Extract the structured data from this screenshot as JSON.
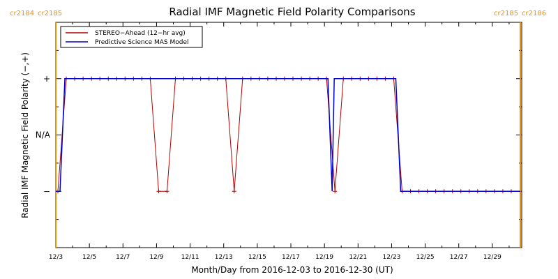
{
  "chart_data": {
    "type": "line",
    "title": "Radial IMF Magnetic Field Polarity Comparisons",
    "xlabel": "Month/Day from 2016-12-03 to 2016-12-30 (UT)",
    "ylabel": "Radial IMF Magnetic Field Polarity (−,+)",
    "x_tick_labels": [
      "12/3",
      "12/5",
      "12/7",
      "12/9",
      "12/11",
      "12/13",
      "12/15",
      "12/17",
      "12/19",
      "12/21",
      "12/23",
      "12/25",
      "12/27",
      "12/29"
    ],
    "x_tick_dates": [
      "2016-12-03",
      "2016-12-05",
      "2016-12-07",
      "2016-12-09",
      "2016-12-11",
      "2016-12-13",
      "2016-12-15",
      "2016-12-17",
      "2016-12-19",
      "2016-12-21",
      "2016-12-23",
      "2016-12-25",
      "2016-12-27",
      "2016-12-29"
    ],
    "x_range": [
      "2016-12-03",
      "2016-12-30T18:00"
    ],
    "y_categories": [
      "−",
      "N/A",
      "+"
    ],
    "y_category_values": [
      -1,
      0,
      1
    ],
    "ylim": [
      -2,
      2
    ],
    "carrington_markers": [
      {
        "date": "2016-12-03",
        "label_left": "cr2184",
        "label_right": "cr2185"
      },
      {
        "date": "2016-12-30T16:00",
        "label_left": "cr2185",
        "label_right": "cr2186"
      }
    ],
    "marker_color": "#e8900c",
    "series": [
      {
        "name": "STEREO−Ahead (12−hr avg)",
        "color": "#b00000",
        "step_hours": 12,
        "start": "2016-12-03",
        "values": [
          -1,
          1,
          1,
          1,
          1,
          1,
          1,
          1,
          1,
          1,
          1,
          1,
          -1,
          -1,
          1,
          1,
          1,
          1,
          1,
          1,
          1,
          -1,
          1,
          1,
          1,
          1,
          1,
          1,
          1,
          1,
          1,
          1,
          1,
          -1,
          1,
          1,
          1,
          1,
          1,
          1,
          1,
          -1,
          -1,
          -1,
          -1,
          -1,
          -1,
          -1,
          -1,
          -1,
          -1,
          -1,
          -1,
          -1,
          -1
        ]
      },
      {
        "name": "Predictive Science MAS Model",
        "color": "#0000cc",
        "points": [
          [
            "2016-12-03T00:00",
            -1
          ],
          [
            "2016-12-03T06:00",
            -1
          ],
          [
            "2016-12-03T13:00",
            1
          ],
          [
            "2016-12-19T05:00",
            1
          ],
          [
            "2016-12-19T11:00",
            -1
          ],
          [
            "2016-12-19T14:00",
            1
          ],
          [
            "2016-12-23T06:00",
            1
          ],
          [
            "2016-12-23T13:00",
            -1
          ],
          [
            "2016-12-30T16:00",
            -1
          ]
        ]
      }
    ],
    "legend_position": "top-left"
  }
}
